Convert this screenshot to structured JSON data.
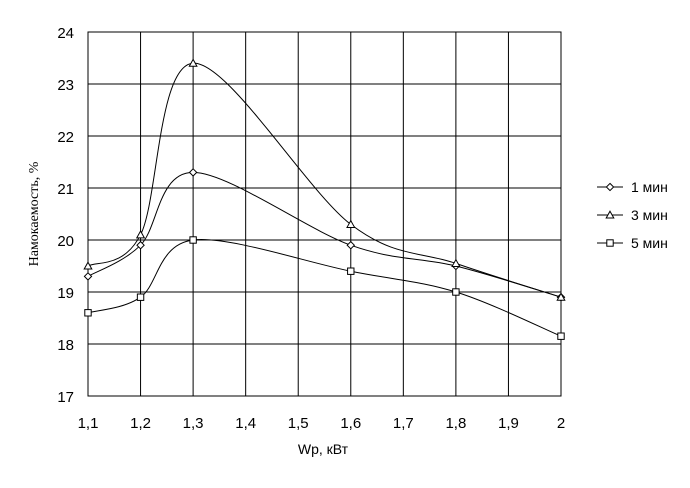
{
  "chart_data": {
    "type": "line",
    "title": "",
    "xlabel": "Wp, кВт",
    "ylabel": "Намокаемость, %",
    "xlim": [
      1.1,
      2.0
    ],
    "ylim": [
      17,
      24
    ],
    "xticks": [
      1.1,
      1.2,
      1.3,
      1.4,
      1.5,
      1.6,
      1.7,
      1.8,
      1.9,
      2.0
    ],
    "xtick_labels": [
      "1,1",
      "1,2",
      "1,3",
      "1,4",
      "1,5",
      "1,6",
      "1,7",
      "1,8",
      "1,9",
      "2"
    ],
    "yticks": [
      17,
      18,
      19,
      20,
      21,
      22,
      23,
      24
    ],
    "ytick_labels": [
      "17",
      "18",
      "19",
      "20",
      "21",
      "22",
      "23",
      "24"
    ],
    "grid": true,
    "legend_position": "right",
    "smooth": true,
    "series": [
      {
        "name": "1 мин",
        "marker": "diamond",
        "x": [
          1.1,
          1.2,
          1.3,
          1.6,
          1.8,
          2.0
        ],
        "y": [
          19.3,
          19.9,
          21.3,
          19.9,
          19.5,
          18.9
        ]
      },
      {
        "name": "3 мин",
        "marker": "triangle",
        "x": [
          1.1,
          1.2,
          1.3,
          1.6,
          1.8,
          2.0
        ],
        "y": [
          19.5,
          20.1,
          23.4,
          20.3,
          19.55,
          18.9
        ]
      },
      {
        "name": "5 мин",
        "marker": "square",
        "x": [
          1.1,
          1.2,
          1.3,
          1.6,
          1.8,
          2.0
        ],
        "y": [
          18.6,
          18.9,
          20.0,
          19.4,
          19.0,
          18.15
        ]
      }
    ],
    "colors": {
      "line": "#000000",
      "grid": "#000000",
      "background": "#ffffff",
      "marker_fill": "#ffffff"
    }
  }
}
